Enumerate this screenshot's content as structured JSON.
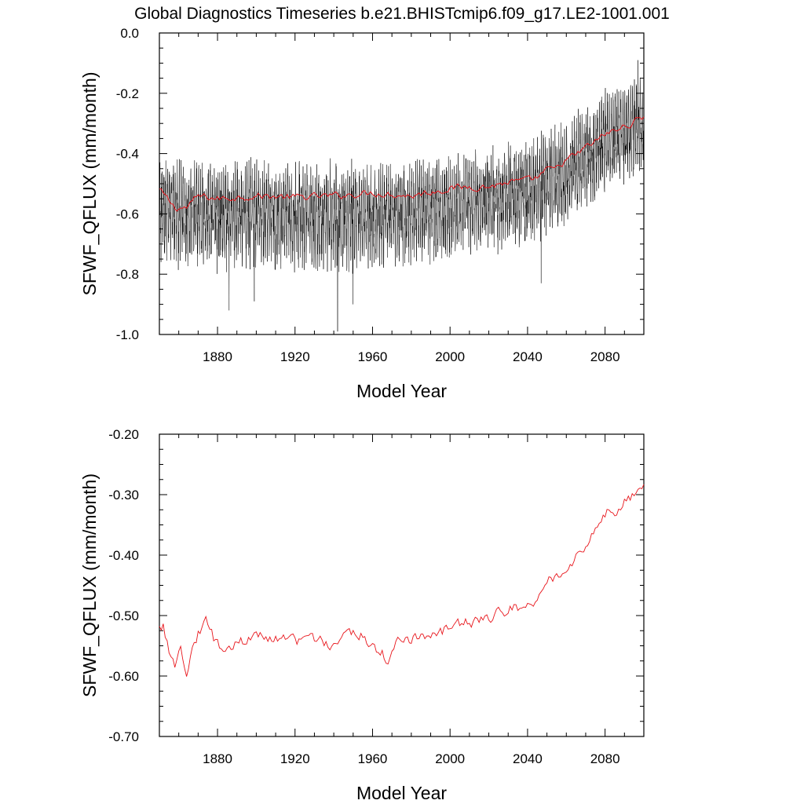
{
  "title": "Global Diagnostics Timeseries b.e21.BHISTcmip6.f09_g17.LE2-1001.001",
  "colors": {
    "monthly_line": "#000000",
    "annual_line": "#e8151b",
    "axis": "#000000"
  },
  "chart_data": [
    {
      "type": "line",
      "xlabel": "Model Year",
      "ylabel": "SFWF_QFLUX (mm/month)",
      "xlim": [
        1850,
        2100
      ],
      "ylim": [
        -1.0,
        0.0
      ],
      "x_ticks": [
        1880,
        1920,
        1960,
        2000,
        2040,
        2080
      ],
      "x_tick_labels": [
        "1880",
        "1920",
        "1960",
        "2000",
        "2040",
        "2080"
      ],
      "y_ticks": [
        0.0,
        -0.2,
        -0.4,
        -0.6,
        -0.8,
        -1.0
      ],
      "y_tick_labels": [
        "0.0",
        "-0.2",
        "-0.4",
        "-0.6",
        "-0.8",
        "-1.0"
      ],
      "grid": false,
      "legend": "none",
      "series": [
        {
          "style": "monthly",
          "color": "#000000",
          "x_start": 1850,
          "x_end": 2100,
          "step": 0.0833,
          "envelope_x": [
            1850,
            1880,
            1920,
            1960,
            2000,
            2040,
            2060,
            2080,
            2100
          ],
          "envelope_max": [
            -0.4,
            -0.41,
            -0.41,
            -0.42,
            -0.4,
            -0.34,
            -0.28,
            -0.18,
            -0.13
          ],
          "envelope_min": [
            -0.78,
            -0.8,
            -0.8,
            -0.8,
            -0.76,
            -0.72,
            -0.65,
            -0.54,
            -0.47
          ],
          "extremes": [
            {
              "x": 1886,
              "y": -0.92
            },
            {
              "x": 1899,
              "y": -0.89
            },
            {
              "x": 1942,
              "y": -0.99
            },
            {
              "x": 1950,
              "y": -0.9
            },
            {
              "x": 2047,
              "y": -0.83
            },
            {
              "x": 2097,
              "y": -0.09
            }
          ]
        },
        {
          "style": "annual",
          "color": "#e8151b",
          "x_start": 1850,
          "step": 1,
          "y_anchor_x": [
            1850,
            1858,
            1864,
            1870,
            1880,
            1900,
            1920,
            1940,
            1960,
            1980,
            2000,
            2010,
            2020,
            2030,
            2040,
            2045,
            2050,
            2055,
            2060,
            2065,
            2070,
            2075,
            2080,
            2085,
            2090,
            2095,
            2100
          ],
          "y_anchor": [
            -0.52,
            -0.58,
            -0.58,
            -0.54,
            -0.55,
            -0.54,
            -0.545,
            -0.54,
            -0.53,
            -0.54,
            -0.515,
            -0.51,
            -0.51,
            -0.495,
            -0.49,
            -0.48,
            -0.455,
            -0.45,
            -0.42,
            -0.405,
            -0.38,
            -0.36,
            -0.335,
            -0.325,
            -0.31,
            -0.295,
            -0.275
          ]
        }
      ]
    },
    {
      "type": "line",
      "xlabel": "Model Year",
      "ylabel": "SFWF_QFLUX (mm/month)",
      "xlim": [
        1850,
        2100
      ],
      "ylim": [
        -0.7,
        -0.2
      ],
      "x_ticks": [
        1880,
        1920,
        1960,
        2000,
        2040,
        2080
      ],
      "x_tick_labels": [
        "1880",
        "1920",
        "1960",
        "2000",
        "2040",
        "2080"
      ],
      "y_ticks": [
        -0.2,
        -0.3,
        -0.4,
        -0.5,
        -0.6,
        -0.7
      ],
      "y_tick_labels": [
        "-0.20",
        "-0.30",
        "-0.40",
        "-0.50",
        "-0.60",
        "-0.70"
      ],
      "grid": false,
      "legend": "none",
      "series": [
        {
          "style": "annual",
          "color": "#e8151b",
          "x_start": 1850,
          "step": 1,
          "y_anchor_x": [
            1850,
            1852,
            1855,
            1858,
            1861,
            1864,
            1867,
            1870,
            1874,
            1880,
            1890,
            1900,
            1910,
            1920,
            1930,
            1940,
            1950,
            1960,
            1968,
            1975,
            1985,
            1995,
            2000,
            2010,
            2020,
            2030,
            2040,
            2045,
            2050,
            2055,
            2060,
            2065,
            2070,
            2075,
            2080,
            2085,
            2090,
            2095,
            2100
          ],
          "y_anchor": [
            -0.52,
            -0.515,
            -0.56,
            -0.585,
            -0.56,
            -0.59,
            -0.555,
            -0.53,
            -0.51,
            -0.55,
            -0.545,
            -0.535,
            -0.54,
            -0.545,
            -0.54,
            -0.55,
            -0.525,
            -0.545,
            -0.575,
            -0.535,
            -0.54,
            -0.53,
            -0.515,
            -0.51,
            -0.505,
            -0.49,
            -0.485,
            -0.47,
            -0.44,
            -0.44,
            -0.42,
            -0.4,
            -0.385,
            -0.355,
            -0.33,
            -0.33,
            -0.315,
            -0.3,
            -0.28
          ]
        }
      ]
    }
  ]
}
